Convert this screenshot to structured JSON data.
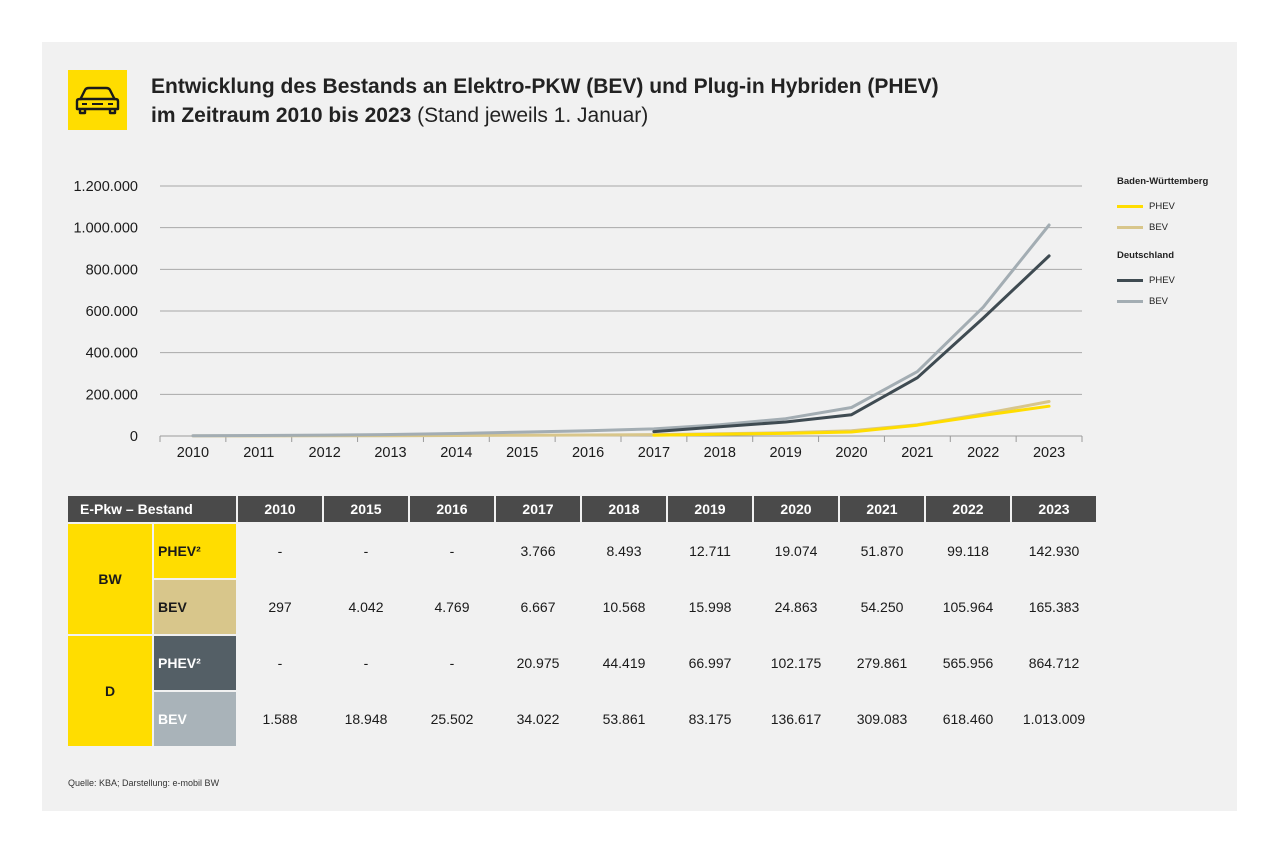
{
  "title": {
    "line1": "Entwicklung des Bestands an Elektro-PKW (BEV) und Plug-in Hybriden (PHEV)",
    "line2_bold": "im Zeitraum 2010 bis 2023",
    "line2_normal": " (Stand jeweils 1. Januar)"
  },
  "legend": {
    "group1": "Baden-Württemberg",
    "group2": "Deutschland",
    "phev": "PHEV",
    "bev": "BEV"
  },
  "colors": {
    "bw_phev": "#ffdd00",
    "bw_bev": "#d8c68b",
    "d_phev": "#3f4b52",
    "d_bev": "#a3adb3"
  },
  "chart_data": {
    "type": "line",
    "x": [
      "2010",
      "2011",
      "2012",
      "2013",
      "2014",
      "2015",
      "2016",
      "2017",
      "2018",
      "2019",
      "2020",
      "2021",
      "2022",
      "2023"
    ],
    "ylim": [
      0,
      1200000
    ],
    "yticks": [
      "0",
      "200.000",
      "400.000",
      "600.000",
      "800.000",
      "1.000.000",
      "1.200.000"
    ],
    "grid": true,
    "legend_position": "right",
    "series": [
      {
        "name": "PHEV",
        "group": "Baden-Württemberg",
        "color": "#ffdd00",
        "values": [
          null,
          null,
          null,
          null,
          null,
          null,
          null,
          3766,
          8493,
          12711,
          19074,
          51870,
          99118,
          142930
        ]
      },
      {
        "name": "BEV",
        "group": "Baden-Württemberg",
        "color": "#d8c68b",
        "values": [
          297,
          500,
          800,
          1200,
          2500,
          4042,
          4769,
          6667,
          10568,
          15998,
          24863,
          54250,
          105964,
          165383
        ]
      },
      {
        "name": "PHEV",
        "group": "Deutschland",
        "color": "#3f4b52",
        "values": [
          null,
          null,
          null,
          null,
          null,
          null,
          null,
          20975,
          44419,
          66997,
          102175,
          279861,
          565956,
          864712
        ]
      },
      {
        "name": "BEV",
        "group": "Deutschland",
        "color": "#a3adb3",
        "values": [
          1588,
          2300,
          4500,
          7100,
          12200,
          18948,
          25502,
          34022,
          53861,
          83175,
          136617,
          309083,
          618460,
          1013009
        ]
      }
    ]
  },
  "table": {
    "header": [
      "E-Pkw – Bestand",
      "2010",
      "2015",
      "2016",
      "2017",
      "2018",
      "2019",
      "2020",
      "2021",
      "2022",
      "2023"
    ],
    "regions": [
      "BW",
      "D"
    ],
    "row_labels": [
      "PHEV²",
      "BEV",
      "PHEV²",
      "BEV"
    ],
    "rows": [
      [
        "-",
        "-",
        "-",
        "3.766",
        "8.493",
        "12.711",
        "19.074",
        "51.870",
        "99.118",
        "142.930"
      ],
      [
        "297",
        "4.042",
        "4.769",
        "6.667",
        "10.568",
        "15.998",
        "24.863",
        "54.250",
        "105.964",
        "165.383"
      ],
      [
        "-",
        "-",
        "-",
        "20.975",
        "44.419",
        "66.997",
        "102.175",
        "279.861",
        "565.956",
        "864.712"
      ],
      [
        "1.588",
        "18.948",
        "25.502",
        "34.022",
        "53.861",
        "83.175",
        "136.617",
        "309.083",
        "618.460",
        "1.013.009"
      ]
    ]
  },
  "source": "Quelle: KBA; Darstellung: e-mobil BW"
}
